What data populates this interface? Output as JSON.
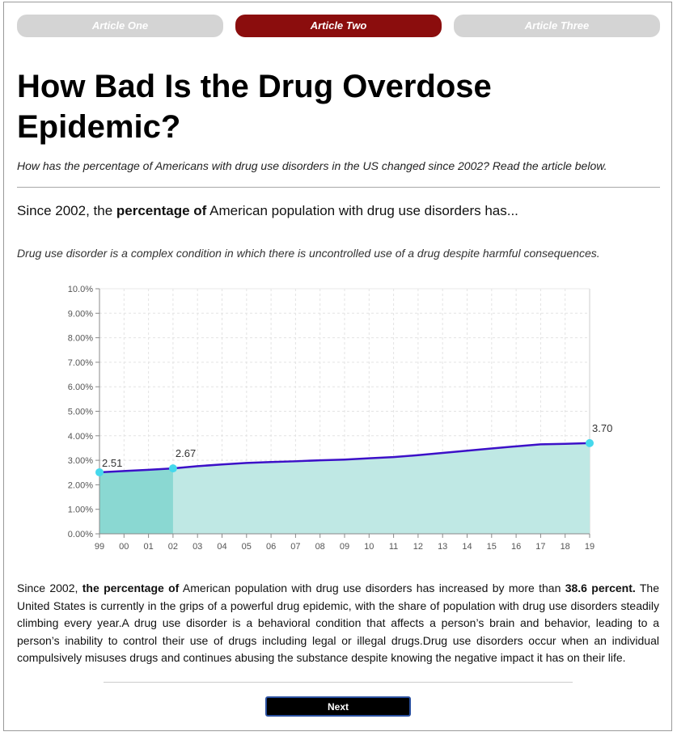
{
  "tabs": [
    {
      "label": "Article One",
      "active": false
    },
    {
      "label": "Article Two",
      "active": true
    },
    {
      "label": "Article Three",
      "active": false
    }
  ],
  "article": {
    "title": "How Bad Is the Drug Overdose Epidemic?",
    "subtitle": "How has the percentage of Americans with drug use disorders in the US changed since 2002? Read the article below.",
    "lead": {
      "before": "Since 2002, the ",
      "bold": "percentage of",
      "after": " American population with drug use disorders has..."
    },
    "definition": "Drug use disorder is a complex condition in which there is uncontrolled use of a drug despite harmful consequences.",
    "body": {
      "p1": "Since 2002, ",
      "b1": "the percentage of",
      "p2": " American population with drug use disorders has increased by more than ",
      "b2": "38.6 percent.",
      "p3": " The United States is currently in the grips of a powerful drug epidemic, with the share of population with drug use disorders steadily climbing every year.A drug use disorder is a behavioral condition that affects a person’s brain and behavior, leading to a person’s inability to control their use of drugs including legal or illegal drugs.Drug use disorders occur when an individual compulsively misuses drugs and continues abusing the substance despite knowing the negative impact it has on their life."
    }
  },
  "next_button": "Next",
  "colors": {
    "accent": "#8b0d0d",
    "tab_inactive": "#d4d4d4",
    "line": "#3c10c8",
    "area": "#bfe8e4",
    "area_highlight": "#8ad8d2",
    "marker": "#45d8ec"
  },
  "chart_data": {
    "type": "area",
    "title": "",
    "xlabel": "",
    "ylabel": "",
    "categories": [
      "99",
      "00",
      "01",
      "02",
      "03",
      "04",
      "05",
      "06",
      "07",
      "08",
      "09",
      "10",
      "11",
      "12",
      "13",
      "14",
      "15",
      "16",
      "17",
      "18",
      "19"
    ],
    "values": [
      2.51,
      2.56,
      2.61,
      2.67,
      2.76,
      2.83,
      2.89,
      2.93,
      2.96,
      3.0,
      3.03,
      3.08,
      3.13,
      3.21,
      3.3,
      3.39,
      3.48,
      3.57,
      3.65,
      3.67,
      3.7
    ],
    "ylim": [
      0,
      10
    ],
    "yticks": [
      "0.00%",
      "1.00%",
      "2.00%",
      "3.00%",
      "4.00%",
      "5.00%",
      "6.00%",
      "7.00%",
      "8.00%",
      "9.00%",
      "10.0%"
    ],
    "highlight_range": [
      "99",
      "02"
    ],
    "labeled_points": [
      {
        "category": "99",
        "value": 2.51,
        "label": "2.51"
      },
      {
        "category": "02",
        "value": 2.67,
        "label": "2.67"
      },
      {
        "category": "19",
        "value": 3.7,
        "label": "3.70"
      }
    ],
    "grid": true
  }
}
